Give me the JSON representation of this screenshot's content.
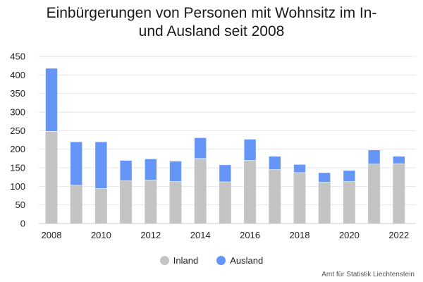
{
  "chart_data": {
    "type": "bar",
    "stacked": true,
    "title_line1": "Einbürgerungen von Personen mit Wohnsitz im In-",
    "title_line2": "und Ausland seit 2008",
    "categories": [
      "2008",
      "2009",
      "2010",
      "2011",
      "2012",
      "2013",
      "2014",
      "2015",
      "2016",
      "2017",
      "2018",
      "2019",
      "2020",
      "2021",
      "2022"
    ],
    "x_tick_labels": [
      "2008",
      "2010",
      "2012",
      "2014",
      "2016",
      "2018",
      "2020",
      "2022"
    ],
    "series": [
      {
        "name": "Inland",
        "color": "#c4c4c4",
        "values": [
          248,
          103,
          94,
          115,
          117,
          113,
          175,
          112,
          170,
          145,
          137,
          111,
          113,
          160,
          161
        ]
      },
      {
        "name": "Ausland",
        "color": "#6495f7",
        "values": [
          170,
          117,
          126,
          55,
          57,
          55,
          56,
          46,
          57,
          36,
          22,
          26,
          30,
          38,
          20
        ]
      }
    ],
    "y_ticks": [
      0,
      50,
      100,
      150,
      200,
      250,
      300,
      350,
      400,
      450
    ],
    "ylim": [
      0,
      450
    ],
    "grid": true,
    "legend_position": "bottom",
    "source": "Amt für Statistik Liechtenstein"
  }
}
